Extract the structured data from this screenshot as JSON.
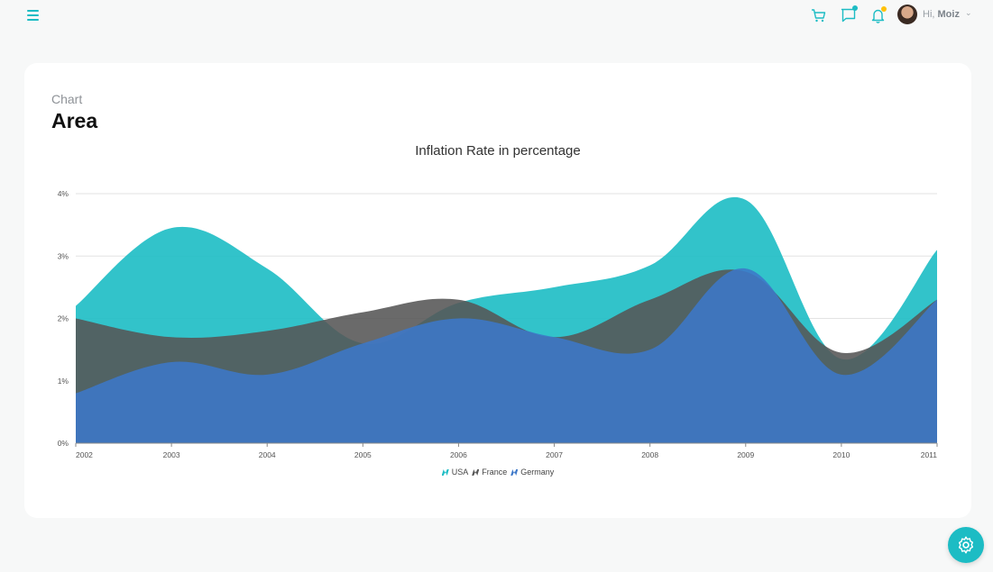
{
  "header": {
    "greeting_prefix": "Hi,",
    "user_name": "Moiz",
    "accent_color": "#1cbcc4",
    "notification_dot_colors": [
      "#1cbcc4",
      "#ffc107"
    ],
    "icons": [
      "menu-icon",
      "cart-icon",
      "chat-icon",
      "bell-icon",
      "chevron-down-icon",
      "gear-icon"
    ]
  },
  "card": {
    "subtitle": "Chart",
    "title": "Area"
  },
  "chart_data": {
    "type": "area",
    "title": "Inflation Rate in percentage",
    "x": [
      "2002",
      "2003",
      "2004",
      "2005",
      "2006",
      "2007",
      "2008",
      "2009",
      "2010",
      "2011"
    ],
    "ylim": [
      0,
      4
    ],
    "yticks": [
      "0%",
      "1%",
      "2%",
      "3%",
      "4%"
    ],
    "grid": true,
    "legend_position": "bottom",
    "series": [
      {
        "name": "USA",
        "color": "#1cbcc4",
        "values": [
          2.2,
          3.45,
          2.8,
          1.6,
          2.25,
          2.5,
          2.85,
          3.9,
          1.35,
          3.1
        ]
      },
      {
        "name": "France",
        "color": "#555555",
        "values": [
          2.0,
          1.7,
          1.8,
          2.1,
          2.3,
          1.7,
          2.3,
          2.75,
          1.45,
          2.3
        ]
      },
      {
        "name": "Germany",
        "color": "#3c77c8",
        "values": [
          0.8,
          1.3,
          1.1,
          1.6,
          2.0,
          1.7,
          1.5,
          2.8,
          1.1,
          2.3
        ]
      }
    ]
  }
}
